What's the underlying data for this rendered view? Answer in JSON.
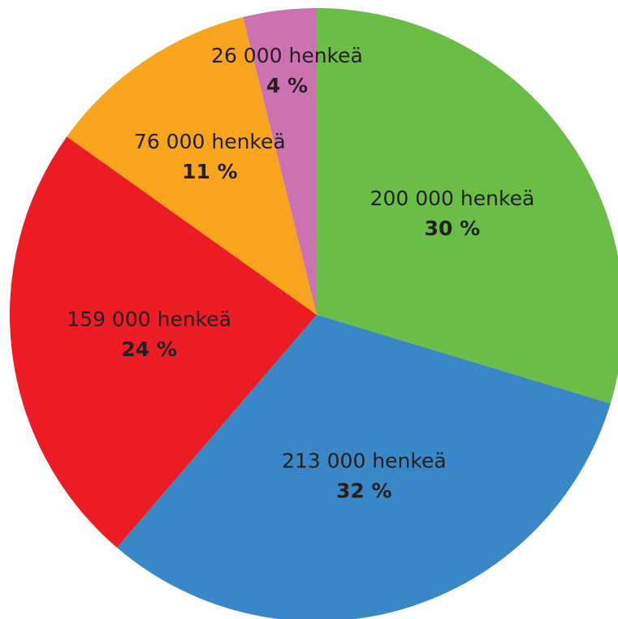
{
  "chart_data": {
    "type": "pie",
    "values": [
      200000,
      213000,
      159000,
      76000,
      26000
    ],
    "value_labels": [
      "200 000 henkeä",
      "213 000 henkeä",
      "159 000 henkeä",
      "76 000 henkeä",
      "26 000 henkeä"
    ],
    "percentages": [
      30,
      32,
      24,
      11,
      4
    ],
    "percentage_labels": [
      "30 %",
      "32 %",
      "24 %",
      "11 %",
      "4 %"
    ],
    "colors": [
      "#6abd45",
      "#3a87c8",
      "#ec1c24",
      "#f8a51d",
      "#cc72b1"
    ]
  }
}
